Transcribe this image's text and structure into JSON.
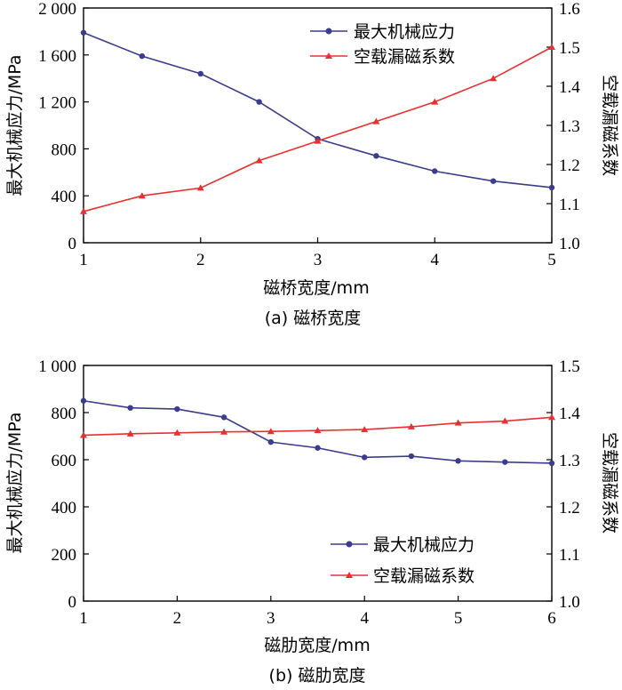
{
  "colors": {
    "stress": "#3c3c8c",
    "leakage": "#e83030",
    "axis": "#000000"
  },
  "chart_data": [
    {
      "type": "line",
      "caption": "(a) 磁桥宽度",
      "xlabel": "磁桥宽度/mm",
      "ylabel_left": "最大机械应力/MPa",
      "ylabel_right": "空载漏磁系数",
      "xlim": [
        1,
        5
      ],
      "ylim_left": [
        0,
        2000
      ],
      "ylim_right": [
        1.0,
        1.6
      ],
      "x_ticks": [
        1,
        2,
        3,
        4,
        5
      ],
      "x_tick_labels": [
        "1",
        "2",
        "3",
        "4",
        "5"
      ],
      "y_left_ticks": [
        0,
        400,
        800,
        1200,
        1600,
        2000
      ],
      "y_left_tick_labels": [
        "0",
        "400",
        "800",
        "1 200",
        "1 600",
        "2 000"
      ],
      "y_right_ticks": [
        1.0,
        1.1,
        1.2,
        1.3,
        1.4,
        1.5,
        1.6
      ],
      "y_right_tick_labels": [
        "1.0",
        "1.1",
        "1.2",
        "1.3",
        "1.4",
        "1.5",
        "1.6"
      ],
      "legend_position": "top-right",
      "series": [
        {
          "name": "最大机械应力",
          "axis": "left",
          "marker": "circle",
          "color": "#3c3c8c",
          "x": [
            1,
            1.5,
            2,
            2.5,
            3,
            3.5,
            4,
            4.5,
            5
          ],
          "values": [
            1790,
            1590,
            1440,
            1200,
            885,
            740,
            610,
            525,
            470
          ]
        },
        {
          "name": "空载漏磁系数",
          "axis": "right",
          "marker": "triangle",
          "color": "#e83030",
          "x": [
            1,
            1.5,
            2,
            2.5,
            3,
            3.5,
            4,
            4.5,
            5
          ],
          "values": [
            1.08,
            1.12,
            1.14,
            1.21,
            1.26,
            1.31,
            1.36,
            1.42,
            1.5
          ]
        }
      ]
    },
    {
      "type": "line",
      "caption": "(b) 磁肋宽度",
      "xlabel": "磁肋宽度/mm",
      "ylabel_left": "最大机械应力/MPa",
      "ylabel_right": "空载漏磁系数",
      "xlim": [
        1,
        6
      ],
      "ylim_left": [
        0,
        1000
      ],
      "ylim_right": [
        1.0,
        1.5
      ],
      "x_ticks": [
        1,
        2,
        3,
        4,
        5,
        6
      ],
      "x_tick_labels": [
        "1",
        "2",
        "3",
        "4",
        "5",
        "6"
      ],
      "y_left_ticks": [
        0,
        200,
        400,
        600,
        800,
        1000
      ],
      "y_left_tick_labels": [
        "0",
        "200",
        "400",
        "600",
        "800",
        "1 000"
      ],
      "y_right_ticks": [
        1.0,
        1.1,
        1.2,
        1.3,
        1.4,
        1.5
      ],
      "y_right_tick_labels": [
        "1.0",
        "1.1",
        "1.2",
        "1.3",
        "1.4",
        "1.5"
      ],
      "legend_position": "bottom-right",
      "series": [
        {
          "name": "最大机械应力",
          "axis": "left",
          "marker": "circle",
          "color": "#3c3c8c",
          "x": [
            1,
            1.5,
            2,
            2.5,
            3,
            3.5,
            4,
            4.5,
            5,
            5.5,
            6
          ],
          "values": [
            850,
            820,
            815,
            780,
            675,
            650,
            610,
            615,
            595,
            590,
            585
          ]
        },
        {
          "name": "空载漏磁系数",
          "axis": "right",
          "marker": "triangle",
          "color": "#e83030",
          "x": [
            1,
            1.5,
            2,
            2.5,
            3,
            3.5,
            4,
            4.5,
            5,
            5.5,
            6
          ],
          "values": [
            1.352,
            1.355,
            1.357,
            1.359,
            1.36,
            1.362,
            1.364,
            1.37,
            1.378,
            1.382,
            1.39
          ]
        }
      ]
    }
  ]
}
